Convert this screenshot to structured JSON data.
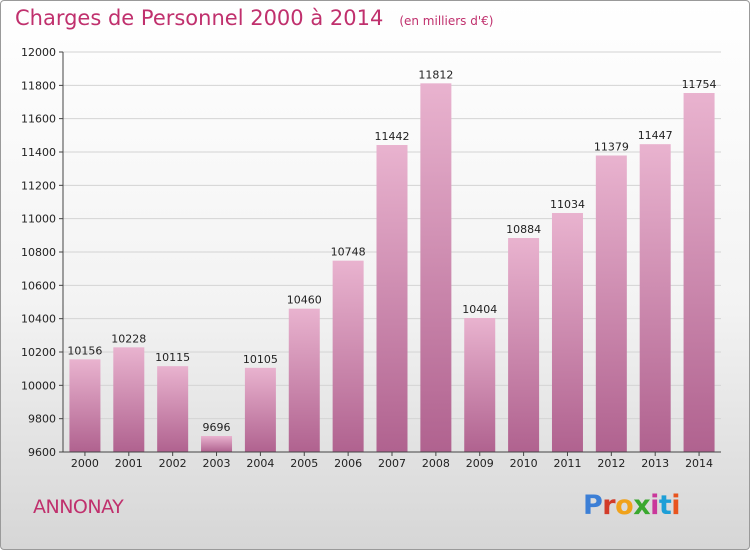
{
  "header": {
    "title": "Charges de Personnel 2000 à 2014",
    "unit": "(en milliers d'€)"
  },
  "footer": {
    "city": "ANNONAY",
    "brand": "Proxiti",
    "brand_colors": [
      "#3c7fd6",
      "#d23c2a",
      "#f0a21b",
      "#3aa82f",
      "#c9389b",
      "#1e9fd7",
      "#e8541e"
    ]
  },
  "colors": {
    "bar_top": "#e9b3cf",
    "bar_bottom": "#b0628f",
    "title": "#c0306d"
  },
  "chart_data": {
    "type": "bar",
    "title": "Charges de Personnel 2000 à 2014",
    "subtitle": "(en milliers d'€)",
    "xlabel": "",
    "ylabel": "",
    "categories": [
      "2000",
      "2001",
      "2002",
      "2003",
      "2004",
      "2005",
      "2006",
      "2007",
      "2008",
      "2009",
      "2010",
      "2011",
      "2012",
      "2013",
      "2014"
    ],
    "values": [
      10156,
      10228,
      10115,
      9696,
      10105,
      10460,
      10748,
      11442,
      11812,
      10404,
      10884,
      11034,
      11379,
      11447,
      11754
    ],
    "ylim": [
      9600,
      12000
    ],
    "yticks": [
      9600,
      9800,
      10000,
      10200,
      10400,
      10600,
      10800,
      11000,
      11200,
      11400,
      11600,
      11800,
      12000
    ],
    "grid": true
  }
}
